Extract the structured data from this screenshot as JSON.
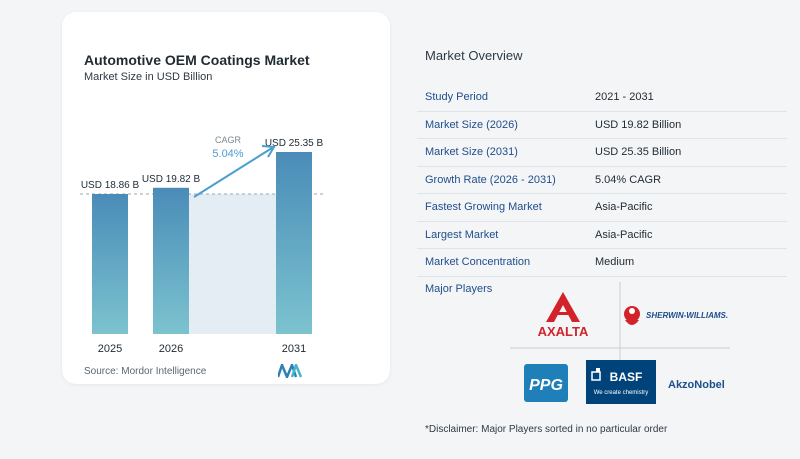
{
  "chart_data": {
    "type": "bar",
    "title": "Automotive OEM Coatings Market",
    "subtitle": "Market Size in USD Billion",
    "categories": [
      "2025",
      "2026",
      "2031"
    ],
    "values": [
      18.86,
      19.82,
      25.35
    ],
    "value_labels": [
      "USD 18.86 B",
      "USD 19.82 B",
      "USD 25.35 B"
    ],
    "annotation": {
      "label": "CAGR",
      "value": "5.04%"
    },
    "colors": {
      "bar_top": "#4a8cb8",
      "bar_bottom": "#7cc3cf",
      "arrow": "#4a9fd0",
      "shade": "#e3edf3"
    }
  },
  "source_text": "Source:  Mordor Intelligence",
  "overview": {
    "title": "Market Overview",
    "rows": [
      {
        "label": "Study Period",
        "value": "2021 - 2031"
      },
      {
        "label": "Market Size (2026)",
        "value": "USD 19.82 Billion"
      },
      {
        "label": "Market Size (2031)",
        "value": "USD 25.35 Billion"
      },
      {
        "label": "Growth Rate (2026 - 2031)",
        "value": "5.04% CAGR"
      },
      {
        "label": "Fastest Growing Market",
        "value": "Asia-Pacific"
      },
      {
        "label": "Largest Market",
        "value": "Asia-Pacific"
      },
      {
        "label": "Market Concentration",
        "value": "Medium"
      }
    ]
  },
  "players": {
    "title": "Major Players",
    "axalta": "AXALTA",
    "sherwin": "SHERWIN-WILLIAMS.",
    "ppg": "PPG",
    "basf": "BASF",
    "basf_tag": "We create chemistry",
    "akzo": "AkzoNobel"
  },
  "disclaimer": "*Disclaimer: Major Players sorted in no particular order"
}
